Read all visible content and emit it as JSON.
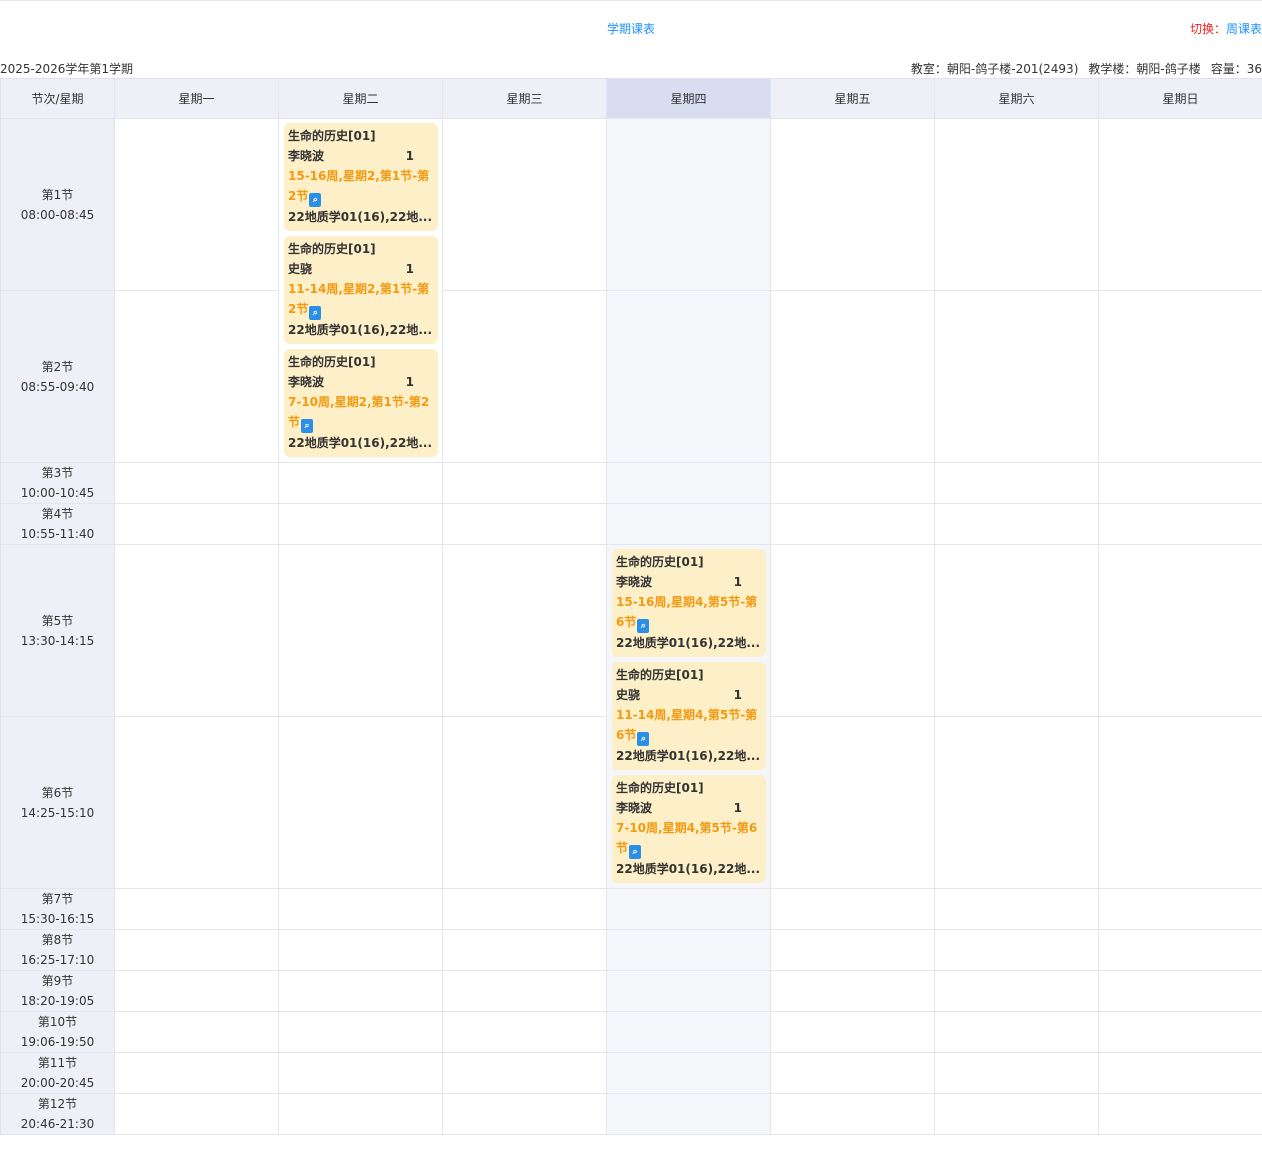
{
  "header": {
    "title": "学期课表",
    "switch_label": "切换：",
    "switch_link": "周课表",
    "term": "2025-2026学年第1学期",
    "classroom": "教室：朝阳-鸽子楼-201(2493)",
    "building": "教学楼：朝阳-鸽子楼",
    "capacity": "容量：36"
  },
  "columns": [
    "节次/星期",
    "星期一",
    "星期二",
    "星期三",
    "星期四",
    "星期五",
    "星期六",
    "星期日"
  ],
  "active_column": 4,
  "periods": [
    {
      "name": "第1节",
      "time": "08:00-08:45"
    },
    {
      "name": "第2节",
      "time": "08:55-09:40"
    },
    {
      "name": "第3节",
      "time": "10:00-10:45"
    },
    {
      "name": "第4节",
      "time": "10:55-11:40"
    },
    {
      "name": "第5节",
      "time": "13:30-14:15"
    },
    {
      "name": "第6节",
      "time": "14:25-15:10"
    },
    {
      "name": "第7节",
      "time": "15:30-16:15"
    },
    {
      "name": "第8节",
      "time": "16:25-17:10"
    },
    {
      "name": "第9节",
      "time": "18:20-19:05"
    },
    {
      "name": "第10节",
      "time": "19:06-19:50"
    },
    {
      "name": "第11节",
      "time": "20:00-20:45"
    },
    {
      "name": "第12节",
      "time": "20:46-21:30"
    }
  ],
  "slots": [
    {
      "day": 2,
      "start_period": 1,
      "end_period": 2,
      "courses": [
        {
          "title": "生命的历史[01]",
          "teacher": "李晓波",
          "count": "1",
          "schedule": "15-16周,星期2,第1节-第2节",
          "classes": "22地质学01(16),22地..."
        },
        {
          "title": "生命的历史[01]",
          "teacher": "史骁",
          "count": "1",
          "schedule": "11-14周,星期2,第1节-第2节",
          "classes": "22地质学01(16),22地..."
        },
        {
          "title": "生命的历史[01]",
          "teacher": "李晓波",
          "count": "1",
          "schedule": "7-10周,星期2,第1节-第2节",
          "classes": "22地质学01(16),22地..."
        }
      ]
    },
    {
      "day": 4,
      "start_period": 5,
      "end_period": 6,
      "courses": [
        {
          "title": "生命的历史[01]",
          "teacher": "李晓波",
          "count": "1",
          "schedule": "15-16周,星期4,第5节-第6节",
          "classes": "22地质学01(16),22地..."
        },
        {
          "title": "生命的历史[01]",
          "teacher": "史骁",
          "count": "1",
          "schedule": "11-14周,星期4,第5节-第6节",
          "classes": "22地质学01(16),22地..."
        },
        {
          "title": "生命的历史[01]",
          "teacher": "李晓波",
          "count": "1",
          "schedule": "7-10周,星期4,第5节-第6节",
          "classes": "22地质学01(16),22地..."
        }
      ]
    }
  ],
  "colors": {
    "accent": "#1e90ff",
    "switch_label": "#f02020",
    "schedule": "#f39a12",
    "card_bg": "#fdefc8"
  },
  "icons": {
    "detail": "search-document-icon"
  }
}
